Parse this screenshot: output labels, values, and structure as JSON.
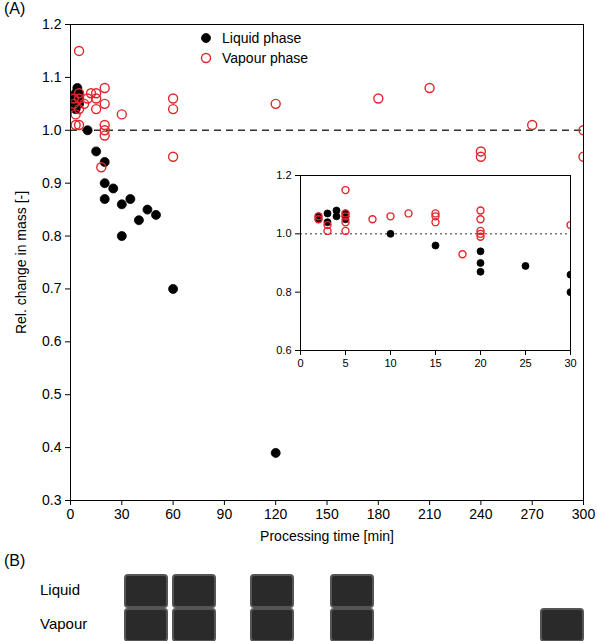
{
  "chart_data": [
    {
      "type": "scatter",
      "panel_label": "(A)",
      "x_label": "Processing time [min]",
      "y_label": "Rel. change in mass [-]",
      "xlim": [
        0,
        300
      ],
      "xticks": [
        0,
        30,
        60,
        90,
        120,
        150,
        180,
        210,
        240,
        270,
        300
      ],
      "ylim": [
        0.3,
        1.2
      ],
      "yticks": [
        0.3,
        0.4,
        0.5,
        0.6,
        0.7,
        0.8,
        0.9,
        {
          "value": 1,
          "label": "1.0"
        },
        1.1,
        1.2
      ],
      "legend": "top",
      "reference_lines": [
        {
          "value": 1,
          "line_style": "dashed"
        }
      ],
      "series": [
        {
          "name": "Liquid phase",
          "color": "#000000",
          "marker": "circle",
          "x": [
            2,
            2,
            3,
            3,
            4,
            4,
            5,
            5,
            5,
            10,
            15,
            20,
            20,
            20,
            25,
            30,
            30,
            35,
            40,
            45,
            50,
            60,
            120
          ],
          "values": [
            1.05,
            1.06,
            1.07,
            1.04,
            1.08,
            1.06,
            1.06,
            1.05,
            1.07,
            1.0,
            0.96,
            0.94,
            0.9,
            0.87,
            0.89,
            0.86,
            0.8,
            0.87,
            0.83,
            0.85,
            0.84,
            0.7,
            0.39
          ]
        },
        {
          "name": "Vapour phase",
          "color": "#e3262b",
          "marker": "open_circle",
          "x": [
            2,
            2,
            3,
            3,
            5,
            5,
            5,
            5,
            5,
            8,
            10,
            12,
            15,
            15,
            15,
            18,
            20,
            20,
            20,
            20,
            20,
            30,
            60,
            60,
            60,
            120,
            180,
            210,
            240,
            240,
            270,
            300,
            300
          ],
          "values": [
            1.05,
            1.06,
            1.03,
            1.01,
            1.15,
            1.01,
            1.04,
            1.06,
            1.07,
            1.05,
            1.06,
            1.07,
            1.04,
            1.06,
            1.07,
            0.93,
            1.08,
            1.05,
            1.01,
            1.0,
            0.99,
            1.03,
            1.06,
            1.04,
            0.95,
            1.05,
            1.06,
            1.08,
            0.96,
            0.95,
            1.01,
            1.0,
            0.95
          ]
        }
      ]
    },
    {
      "type": "scatter",
      "xlim": [
        0,
        30
      ],
      "xticks": [
        0,
        5,
        10,
        15,
        20,
        25,
        30
      ],
      "ylim": [
        0.6,
        1.2
      ],
      "yticks": [
        0.6,
        0.8,
        {
          "value": 1,
          "label": "1.0"
        },
        1.2
      ],
      "reference_lines": [
        {
          "value": 1,
          "line_style": "dotted"
        }
      ],
      "series": [
        {
          "name": "Liquid phase",
          "color": "#000000",
          "marker": "circle",
          "x": [
            2,
            2,
            3,
            3,
            4,
            4,
            5,
            5,
            5,
            10,
            15,
            20,
            20,
            20,
            25,
            30,
            30
          ],
          "values": [
            1.05,
            1.06,
            1.07,
            1.04,
            1.08,
            1.06,
            1.06,
            1.05,
            1.07,
            1.0,
            0.96,
            0.94,
            0.9,
            0.87,
            0.89,
            0.86,
            0.8
          ]
        },
        {
          "name": "Vapour phase",
          "color": "#e3262b",
          "marker": "open_circle",
          "x": [
            2,
            2,
            3,
            3,
            5,
            5,
            5,
            5,
            5,
            8,
            10,
            12,
            15,
            15,
            15,
            18,
            20,
            20,
            20,
            20,
            20,
            30
          ],
          "values": [
            1.05,
            1.06,
            1.03,
            1.01,
            1.15,
            1.01,
            1.04,
            1.06,
            1.07,
            1.05,
            1.06,
            1.07,
            1.04,
            1.06,
            1.07,
            0.93,
            1.08,
            1.05,
            1.01,
            1.0,
            0.99,
            1.03
          ]
        }
      ]
    }
  ],
  "panel_b": {
    "label": "(B)",
    "rows": [
      "Liquid",
      "Vapour"
    ]
  }
}
